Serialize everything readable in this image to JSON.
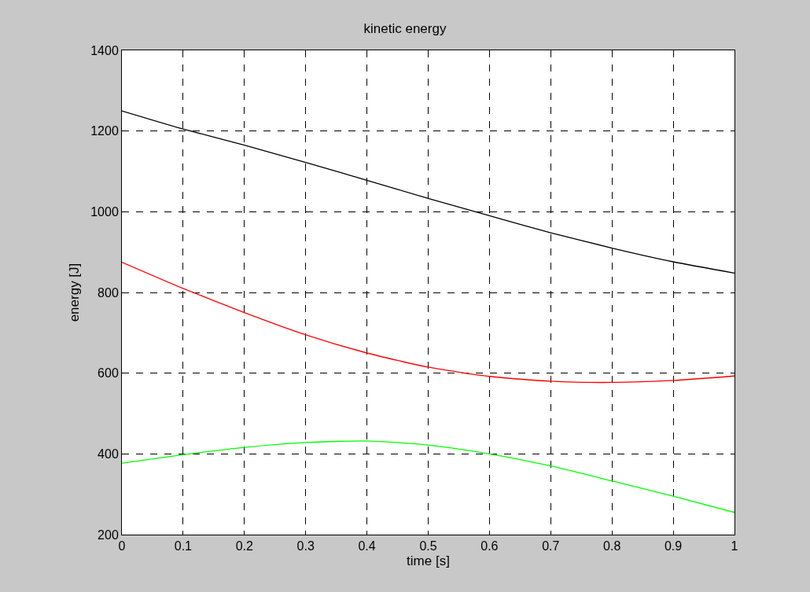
{
  "chart_data": {
    "type": "line",
    "title": "kinetic energy",
    "xlabel": "time [s]",
    "ylabel": "energy [J]",
    "x": [
      0,
      0.1,
      0.2,
      0.3,
      0.4,
      0.5,
      0.6,
      0.7,
      0.8,
      0.9,
      1
    ],
    "series": [
      {
        "color": "#000000",
        "values": [
          1250,
          1205,
          1165,
          1122,
          1078,
          1033,
          990,
          948,
          910,
          876,
          848
        ]
      },
      {
        "color": "#ff0000",
        "values": [
          875,
          810,
          750,
          695,
          650,
          615,
          592,
          580,
          577,
          582,
          593
        ]
      },
      {
        "color": "#00ff00",
        "values": [
          377,
          398,
          416,
          428,
          432,
          422,
          400,
          370,
          333,
          295,
          255
        ]
      }
    ],
    "xlim": [
      0,
      1
    ],
    "xticks": [
      0,
      0.1,
      0.2,
      0.3,
      0.4,
      0.5,
      0.6,
      0.7,
      0.8,
      0.9,
      1
    ],
    "ylim": [
      200,
      1400
    ],
    "yticks": [
      200,
      400,
      600,
      800,
      1000,
      1200,
      1400
    ],
    "grid": true,
    "marker": "none",
    "line_style": "solid"
  }
}
